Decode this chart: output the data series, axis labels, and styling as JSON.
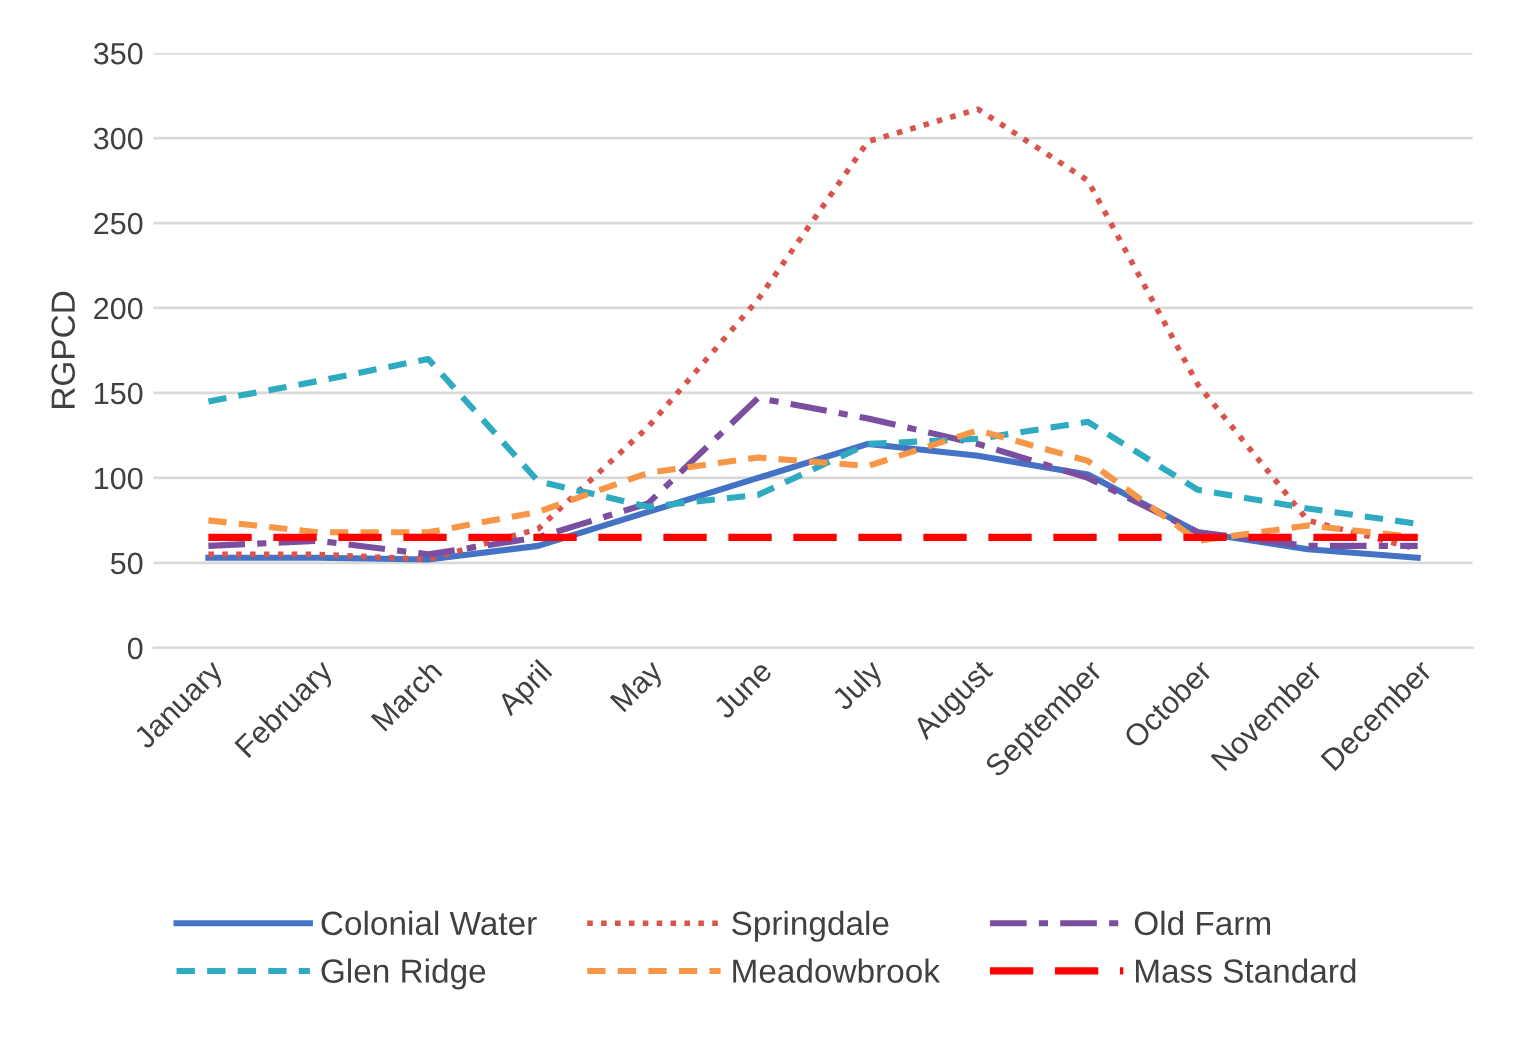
{
  "chart_data": {
    "type": "line",
    "ylabel": "RGPCD",
    "categories": [
      "January",
      "February",
      "March",
      "April",
      "May",
      "June",
      "July",
      "August",
      "September",
      "October",
      "November",
      "December"
    ],
    "series": [
      {
        "name": "Colonial Water",
        "color": "#4472c4",
        "line_style": "solid",
        "values": [
          53,
          53,
          52,
          60,
          80,
          100,
          120,
          113,
          102,
          68,
          58,
          53
        ]
      },
      {
        "name": "Springdale",
        "color": "#d9534f",
        "line_style": "dotted",
        "values": [
          55,
          55,
          52,
          70,
          130,
          205,
          298,
          317,
          275,
          155,
          75,
          58
        ]
      },
      {
        "name": "Old Farm",
        "color": "#7a4fa0",
        "line_style": "dashdot",
        "values": [
          60,
          63,
          55,
          65,
          85,
          147,
          135,
          120,
          100,
          68,
          60,
          60
        ]
      },
      {
        "name": "Glen Ridge",
        "color": "#2eaac1",
        "line_style": "dashed",
        "values": [
          145,
          157,
          170,
          98,
          83,
          90,
          120,
          123,
          133,
          93,
          82,
          73
        ]
      },
      {
        "name": "Meadowbrook",
        "color": "#f79646",
        "line_style": "dashed",
        "values": [
          75,
          68,
          68,
          80,
          103,
          112,
          107,
          128,
          110,
          63,
          72,
          65
        ]
      },
      {
        "name": "Mass Standard",
        "color": "#ff0000",
        "line_style": "longdash",
        "values": [
          65,
          65,
          65,
          65,
          65,
          65,
          65,
          65,
          65,
          65,
          65,
          65
        ]
      }
    ],
    "ylim": [
      0,
      350
    ],
    "yticks": [
      0,
      50,
      100,
      150,
      200,
      250,
      300,
      350
    ],
    "grid": "y",
    "legend": "bottom",
    "marker": "none"
  }
}
